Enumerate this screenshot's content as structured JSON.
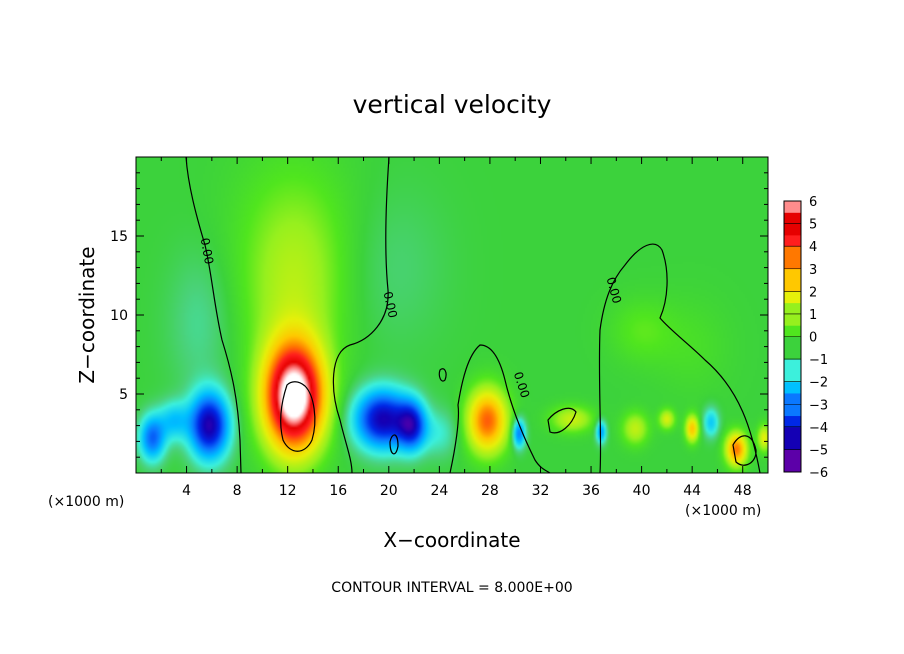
{
  "chart_data": {
    "type": "heatmap",
    "title": "vertical velocity",
    "xlabel": "X−coordinate",
    "ylabel": "Z−coordinate",
    "x_unit": "(×1000 m)",
    "y_unit": "(×1000 m)",
    "footer": "CONTOUR INTERVAL = 8.000E+00",
    "xlim": [
      0,
      50
    ],
    "ylim": [
      0,
      20
    ],
    "x_ticks": [
      {
        "value": 4,
        "label": "4"
      },
      {
        "value": 8,
        "label": "8"
      },
      {
        "value": 12,
        "label": "12"
      },
      {
        "value": 16,
        "label": "16"
      },
      {
        "value": 20,
        "label": "20"
      },
      {
        "value": 24,
        "label": "24"
      },
      {
        "value": 28,
        "label": "28"
      },
      {
        "value": 32,
        "label": "32"
      },
      {
        "value": 36,
        "label": "36"
      },
      {
        "value": 40,
        "label": "40"
      },
      {
        "value": 44,
        "label": "44"
      },
      {
        "value": 48,
        "label": "48"
      }
    ],
    "y_ticks": [
      {
        "value": 5,
        "label": "5"
      },
      {
        "value": 10,
        "label": "10"
      },
      {
        "value": 15,
        "label": "15"
      }
    ],
    "contour_labels": [
      {
        "text": "0.00",
        "x": 5.3,
        "z": 14.0,
        "rotate": 80
      },
      {
        "text": "0.00",
        "x": 19.8,
        "z": 10.6,
        "rotate": 78
      },
      {
        "text": "0.00",
        "x": 37.5,
        "z": 11.5,
        "rotate": 75
      },
      {
        "text": "0.00",
        "x": 30.2,
        "z": 5.5,
        "rotate": 72
      }
    ],
    "colorbar": {
      "min": -6,
      "max": 6,
      "labels": [
        {
          "value": 6,
          "label": "6"
        },
        {
          "value": 5,
          "label": "5"
        },
        {
          "value": 4,
          "label": "4"
        },
        {
          "value": 3,
          "label": "3"
        },
        {
          "value": 2,
          "label": "2"
        },
        {
          "value": 1,
          "label": "1"
        },
        {
          "value": 0,
          "label": "0"
        },
        {
          "value": -1,
          "label": "−1"
        },
        {
          "value": -2,
          "label": "−2"
        },
        {
          "value": -3,
          "label": "−3"
        },
        {
          "value": -4,
          "label": "−4"
        },
        {
          "value": -5,
          "label": "−5"
        },
        {
          "value": -6,
          "label": "−6"
        }
      ],
      "colors": [
        "#8a1ba8",
        "#5c00a8",
        "#1400b4",
        "#0028e6",
        "#0a78ff",
        "#00c0ff",
        "#3cf0dc",
        "#3cd23c",
        "#50e61e",
        "#96f01e",
        "#e6f00a",
        "#ffc800",
        "#ff7800",
        "#ff1e1e",
        "#e60000",
        "#ff8c8c",
        "#ffffff"
      ]
    },
    "features": [
      {
        "name": "updraft-core",
        "x": 12.5,
        "z": 4.8,
        "value": 8.0
      },
      {
        "name": "updraft-upper",
        "x": 12.5,
        "z": 12.0,
        "value": 1.2
      },
      {
        "name": "downdraft-left",
        "x": 5.5,
        "z": 3.0,
        "value": -5.5
      },
      {
        "name": "downdraft-mid",
        "x": 19.5,
        "z": 3.5,
        "value": -5.5
      },
      {
        "name": "updraft-east",
        "x": 27.8,
        "z": 3.3,
        "value": 4.5
      },
      {
        "name": "updraft-far-east",
        "x": 47.5,
        "z": 1.5,
        "value": 4.0
      }
    ]
  }
}
